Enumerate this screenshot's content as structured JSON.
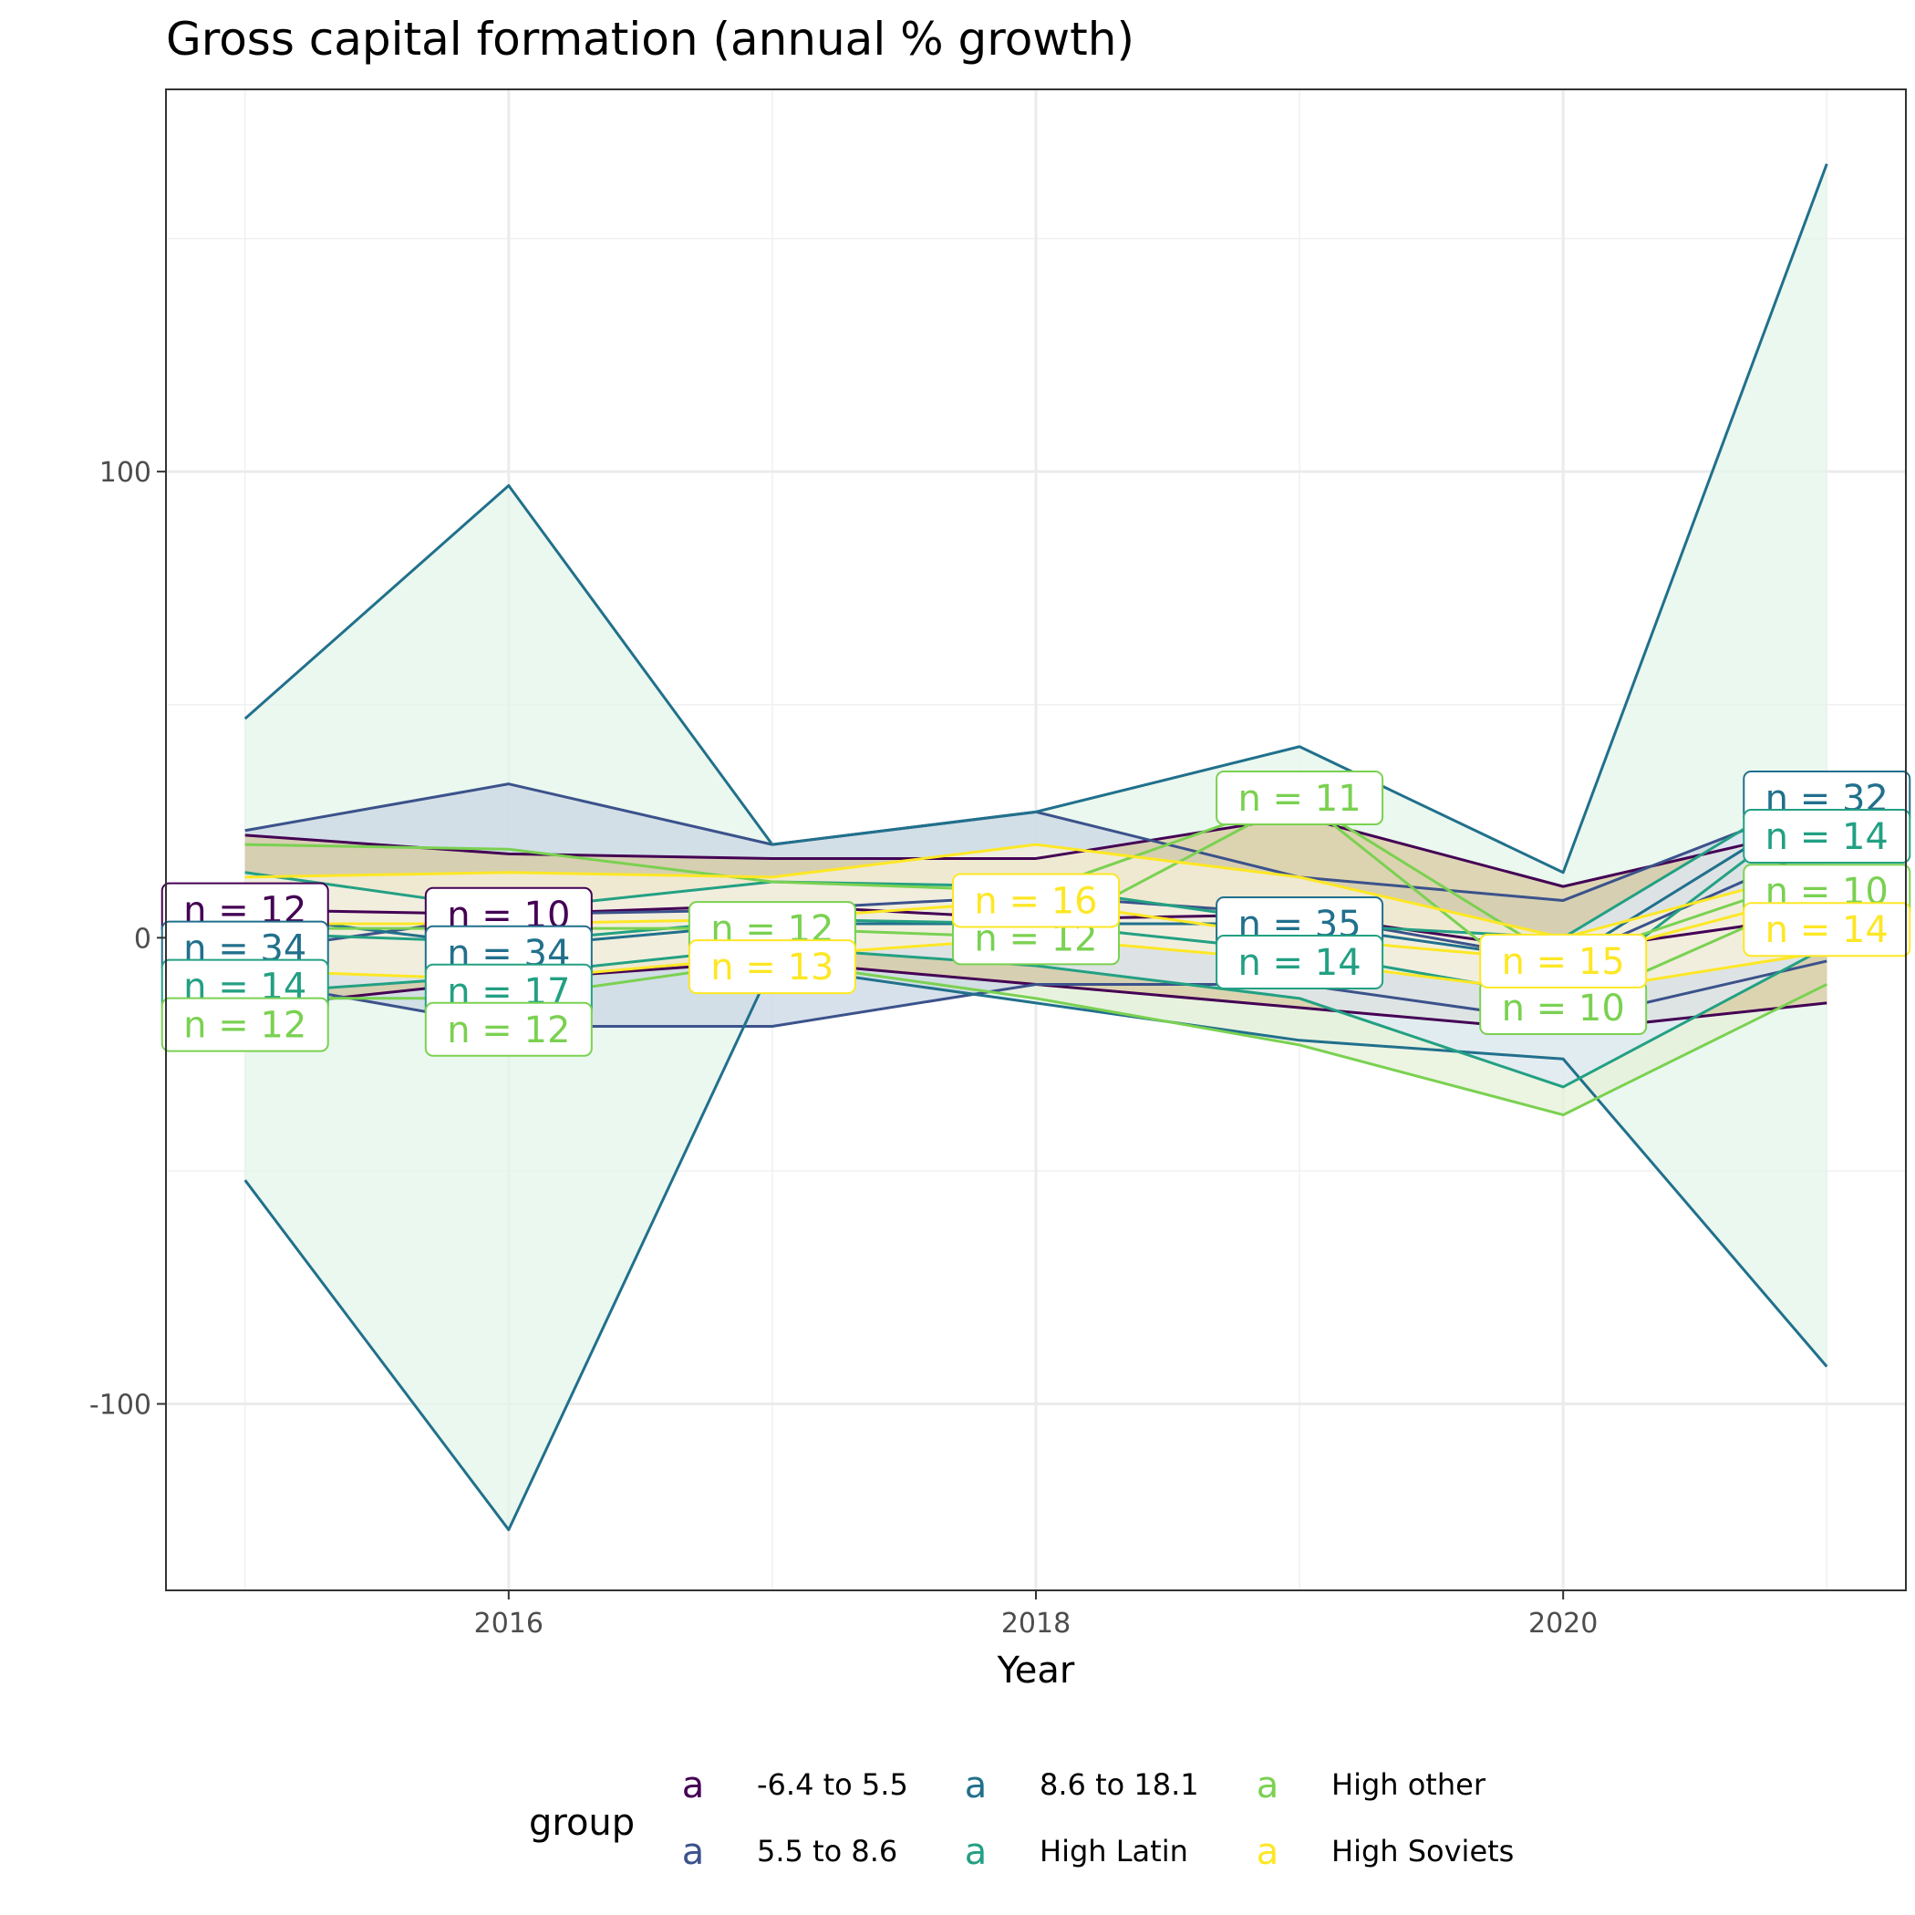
{
  "chart_data": {
    "type": "line",
    "title": "Gross capital formation (annual % growth)",
    "xlabel": "Year",
    "ylabel": "",
    "x": [
      2015,
      2016,
      2017,
      2018,
      2019,
      2020,
      2021
    ],
    "xlim": [
      2014.7,
      2021.3
    ],
    "ylim": [
      -140,
      182
    ],
    "x_ticks": [
      2016,
      2018,
      2020
    ],
    "y_ticks": [
      -100,
      0,
      100
    ],
    "grid": true,
    "legend": {
      "title": "group",
      "position": "bottom",
      "key_glyph": "a"
    },
    "series": [
      {
        "name": "-6.4 to 5.5",
        "color": "#440154",
        "band_color": "#d8c9a0",
        "n_labels": [
          "n = 12",
          "n = 10",
          "",
          "",
          "",
          "",
          ""
        ],
        "lower": [
          -15,
          -9,
          -5,
          -10,
          -15,
          -20,
          -14
        ],
        "median": [
          6,
          5,
          7,
          4,
          5,
          -3,
          5
        ],
        "upper": [
          22,
          18,
          17,
          17,
          26,
          11,
          24
        ]
      },
      {
        "name": "5.5 to 8.6",
        "color": "#3b528b",
        "band_color": "#c9d7e4",
        "n_labels": [
          "",
          "",
          "",
          "",
          "",
          "",
          ""
        ],
        "lower": [
          -9,
          -19,
          -19,
          -10,
          -10,
          -18,
          -5
        ],
        "median": [
          -3,
          5,
          6,
          9,
          5,
          -5,
          20
        ],
        "upper": [
          23,
          33,
          20,
          27,
          13,
          8,
          30
        ]
      },
      {
        "name": "8.6 to 18.1",
        "color": "#21708c",
        "band_color": "#e3f5ea",
        "n_labels": [
          "n = 34",
          "n = 34",
          "",
          "",
          "n = 35",
          "",
          "n = 32"
        ],
        "lower": [
          -52,
          -127,
          -6,
          -14,
          -22,
          -26,
          -92
        ],
        "median": [
          5,
          -2,
          3,
          3,
          3,
          -5,
          30
        ],
        "upper": [
          47,
          97,
          20,
          27,
          41,
          14,
          166
        ]
      },
      {
        "name": "High Latin",
        "color": "#23a083",
        "band_color": "#dfeaf5",
        "n_labels": [
          "n = 14",
          "n = 17",
          "",
          "",
          "n = 14",
          "",
          "n = 14"
        ],
        "lower": [
          -12,
          -8,
          -2,
          -6,
          -13,
          -32,
          -2
        ],
        "median": [
          1,
          -1,
          4,
          3,
          -3,
          -13,
          30
        ],
        "upper": [
          14,
          6,
          12,
          11,
          3,
          0,
          34
        ]
      },
      {
        "name": "High other",
        "color": "#7ad151",
        "band_color": "#e6f0d8",
        "n_labels": [
          "n = 12",
          "n = 12",
          "n = 12",
          "n = 12",
          "n = 11",
          "n = 10",
          "n = 10"
        ],
        "lower": [
          -13,
          -13,
          -5,
          -13,
          -23,
          -38,
          -10
        ],
        "median": [
          2,
          2,
          2,
          0,
          30,
          -15,
          10
        ],
        "upper": [
          20,
          19,
          12,
          10,
          30,
          -5,
          14
        ]
      },
      {
        "name": "High Soviets",
        "color": "#fde725",
        "band_color": "#f7f2dc",
        "n_labels": [
          "",
          "",
          "n = 13",
          "n = 16",
          "",
          "n = 15",
          "n = 14"
        ],
        "lower": [
          -7,
          -9,
          -4,
          0,
          -5,
          -12,
          -3
        ],
        "median": [
          3,
          3,
          4,
          8,
          0,
          -5,
          10
        ],
        "upper": [
          13,
          14,
          13,
          20,
          13,
          0,
          15
        ]
      }
    ]
  }
}
